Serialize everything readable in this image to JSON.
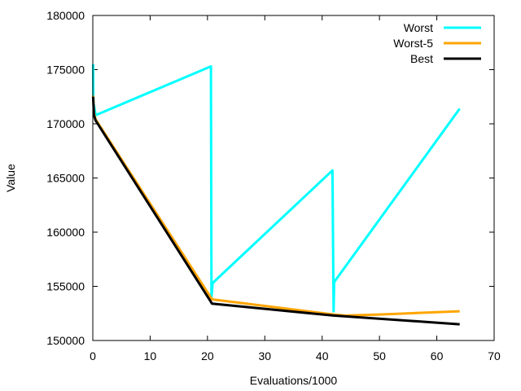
{
  "chart_data": {
    "type": "line",
    "title": "",
    "xlabel": "Evaluations/1000",
    "ylabel": "Value",
    "xlim": [
      0,
      70
    ],
    "ylim": [
      150000,
      180000
    ],
    "xticks": [
      0,
      10,
      20,
      30,
      40,
      50,
      60,
      70
    ],
    "yticks": [
      150000,
      155000,
      160000,
      165000,
      170000,
      175000,
      180000
    ],
    "grid": false,
    "legend": "top-right",
    "series": [
      {
        "name": "Worst",
        "color": "#00ffff",
        "points": [
          [
            0.05,
            175500
          ],
          [
            0.1,
            172000
          ],
          [
            0.3,
            171400
          ],
          [
            0.5,
            170800
          ],
          [
            20.6,
            175300
          ],
          [
            20.7,
            154000
          ],
          [
            20.9,
            155300
          ],
          [
            41.8,
            165700
          ],
          [
            42.0,
            152700
          ],
          [
            42.1,
            155400
          ],
          [
            64.0,
            171400
          ]
        ]
      },
      {
        "name": "Worst-5",
        "color": "#ffa500",
        "points": [
          [
            0.05,
            172600
          ],
          [
            0.2,
            171000
          ],
          [
            0.5,
            170400
          ],
          [
            20.8,
            153800
          ],
          [
            42.0,
            152400
          ],
          [
            44.0,
            152300
          ],
          [
            50.0,
            152400
          ],
          [
            64.0,
            152700
          ]
        ]
      },
      {
        "name": "Best",
        "color": "#000000",
        "points": [
          [
            0.05,
            172500
          ],
          [
            0.2,
            170800
          ],
          [
            0.5,
            170300
          ],
          [
            20.8,
            153400
          ],
          [
            42.0,
            152300
          ],
          [
            64.0,
            151500
          ]
        ]
      }
    ]
  }
}
